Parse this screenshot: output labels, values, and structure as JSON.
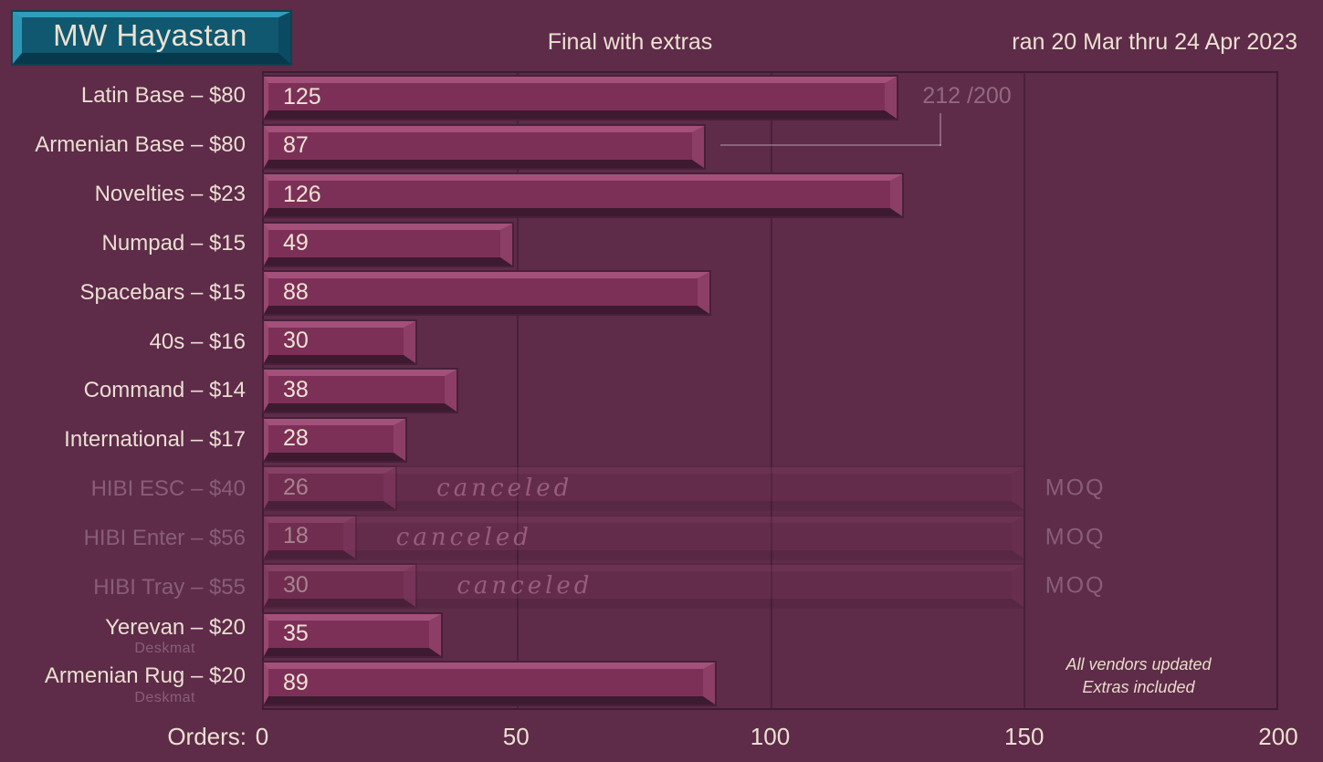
{
  "header": {
    "title": "MW Hayastan",
    "subtitle": "Final with extras",
    "date_range": "ran 20 Mar thru 24 Apr 2023"
  },
  "chart_data": {
    "type": "bar",
    "orientation": "horizontal",
    "title": "MW Hayastan — Final with extras",
    "xlabel": "Orders:",
    "xlim": [
      0,
      200
    ],
    "x_ticks": [
      0,
      50,
      100,
      150,
      200
    ],
    "grid": "vertical gridlines at 50, 100, 150",
    "categories": [
      "Latin Base – $80",
      "Armenian Base – $80",
      "Novelties – $23",
      "Numpad – $15",
      "Spacebars – $15",
      "40s – $16",
      "Command – $14",
      "International – $17",
      "HIBI ESC – $40",
      "HIBI Enter – $56",
      "HIBI Tray – $55",
      "Yerevan – $20",
      "Armenian Rug – $20"
    ],
    "values": [
      125,
      87,
      126,
      49,
      88,
      30,
      38,
      28,
      26,
      18,
      30,
      35,
      89
    ],
    "rows": [
      {
        "label": "Latin Base – $80",
        "value": 125,
        "status": "active"
      },
      {
        "label": "Armenian Base – $80",
        "value": 87,
        "status": "active"
      },
      {
        "label": "Novelties – $23",
        "value": 126,
        "status": "active"
      },
      {
        "label": "Numpad – $15",
        "value": 49,
        "status": "active"
      },
      {
        "label": "Spacebars – $15",
        "value": 88,
        "status": "active"
      },
      {
        "label": "40s – $16",
        "value": 30,
        "status": "active"
      },
      {
        "label": "Command – $14",
        "value": 38,
        "status": "active"
      },
      {
        "label": "International – $17",
        "value": 28,
        "status": "active"
      },
      {
        "label": "HIBI ESC – $40",
        "value": 26,
        "status": "canceled",
        "moq": 150,
        "canceled_label": "canceled",
        "moq_label": "MOQ"
      },
      {
        "label": "HIBI Enter – $56",
        "value": 18,
        "status": "canceled",
        "moq": 150,
        "canceled_label": "canceled",
        "moq_label": "MOQ"
      },
      {
        "label": "HIBI Tray – $55",
        "value": 30,
        "status": "canceled",
        "moq": 150,
        "canceled_label": "canceled",
        "moq_label": "MOQ"
      },
      {
        "label": "Yerevan – $20",
        "sublabel": "Deskmat",
        "value": 35,
        "status": "active"
      },
      {
        "label": "Armenian Rug – $20",
        "sublabel": "Deskmat",
        "value": 89,
        "status": "active"
      }
    ],
    "annotation": {
      "text": "212 /200",
      "row": "Armenian Base – $80"
    },
    "footnote": [
      "All vendors updated",
      "Extras included"
    ]
  },
  "colors": {
    "background": "#5e2b48",
    "bar_face": "#7d3057",
    "bar_highlight": "#a3507b",
    "bar_shadow": "#3d1a30",
    "title_key_face": "#10586f",
    "title_key_highlight": "#2f9fbd",
    "text": "#ece1d2",
    "muted_text": "rgba(233,213,226,0.30)"
  }
}
